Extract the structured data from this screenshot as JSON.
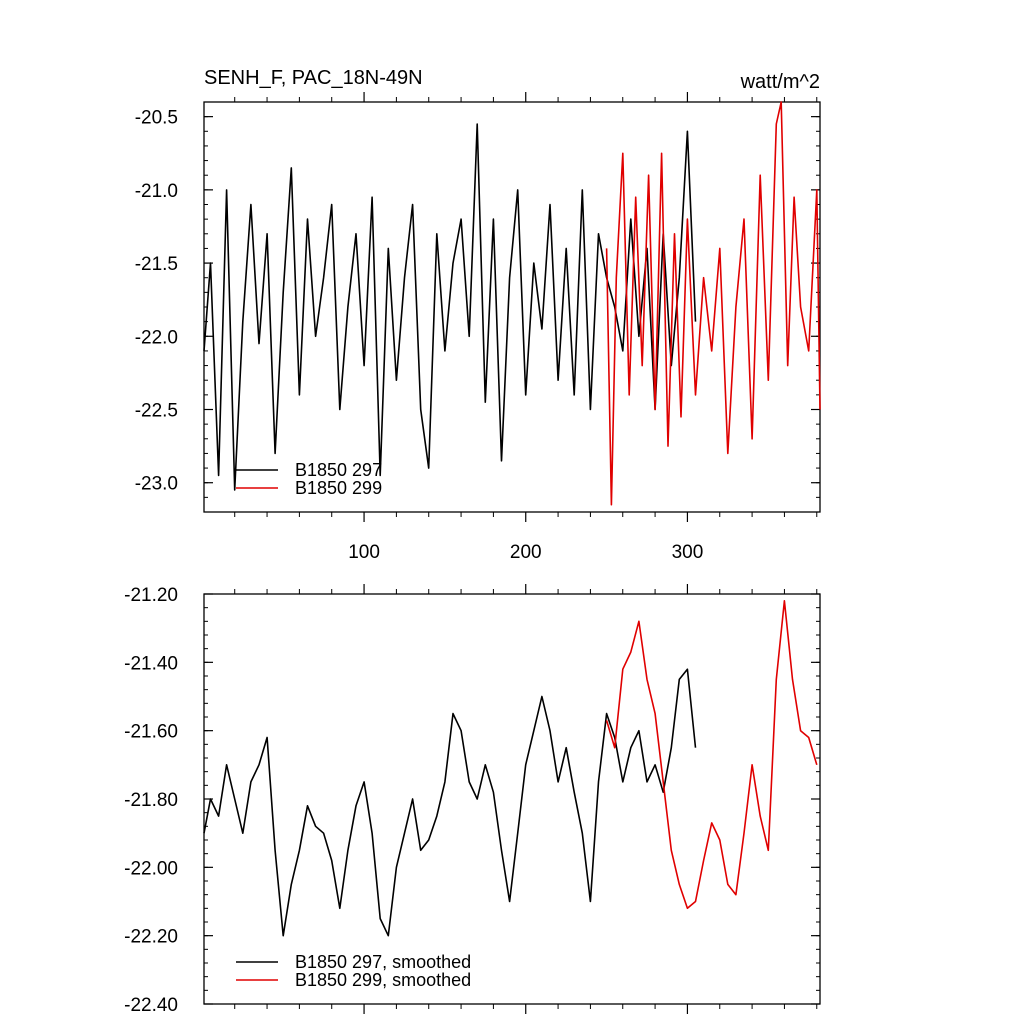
{
  "chart_data": [
    {
      "type": "line",
      "title": "SENH_F, PAC_18N-49N",
      "units": "watt/m^2",
      "xlim": [
        1,
        382
      ],
      "ylim": [
        -23.2,
        -20.4
      ],
      "xticks": [
        100,
        200,
        300
      ],
      "xtick_labels": [
        "100",
        "200",
        "300"
      ],
      "yticks": [
        -20.5,
        -21.0,
        -21.5,
        -22.0,
        -22.5,
        -23.0
      ],
      "ytick_labels": [
        "-20.5",
        "-21.0",
        "-21.5",
        "-22.0",
        "-22.5",
        "-23.0"
      ],
      "legend": "bottom-left",
      "series": [
        {
          "name": "B1850 297",
          "color": "#000000",
          "x": [
            1,
            5,
            10,
            15,
            20,
            25,
            30,
            35,
            40,
            45,
            50,
            55,
            60,
            65,
            70,
            75,
            80,
            85,
            90,
            95,
            100,
            105,
            110,
            115,
            120,
            125,
            130,
            135,
            140,
            145,
            150,
            155,
            160,
            165,
            170,
            175,
            180,
            185,
            190,
            195,
            200,
            205,
            210,
            215,
            220,
            225,
            230,
            235,
            240,
            245,
            250,
            255,
            260,
            265,
            270,
            275,
            280,
            285,
            290,
            295,
            300,
            305
          ],
          "values": [
            -22.1,
            -21.5,
            -22.95,
            -21.0,
            -23.05,
            -21.9,
            -21.1,
            -22.05,
            -21.3,
            -22.8,
            -21.7,
            -20.85,
            -22.4,
            -21.2,
            -22.0,
            -21.6,
            -21.1,
            -22.5,
            -21.8,
            -21.3,
            -22.2,
            -21.05,
            -22.95,
            -21.4,
            -22.3,
            -21.6,
            -21.1,
            -22.5,
            -22.9,
            -21.3,
            -22.1,
            -21.5,
            -21.2,
            -22.0,
            -20.55,
            -22.45,
            -21.2,
            -22.85,
            -21.6,
            -21.0,
            -22.4,
            -21.5,
            -21.95,
            -21.1,
            -22.3,
            -21.4,
            -22.4,
            -21.0,
            -22.5,
            -21.3,
            -21.6,
            -21.8,
            -22.1,
            -21.2,
            -22.0,
            -21.4,
            -22.5,
            -21.3,
            -22.2,
            -21.6,
            -20.6,
            -21.9
          ]
        },
        {
          "name": "B1850 299",
          "color": "#e00000",
          "x": [
            250,
            253,
            256,
            260,
            264,
            268,
            272,
            276,
            280,
            284,
            288,
            292,
            296,
            300,
            305,
            310,
            315,
            320,
            325,
            330,
            335,
            340,
            345,
            350,
            355,
            358,
            362,
            366,
            370,
            375,
            380,
            382
          ],
          "values": [
            -21.4,
            -23.15,
            -21.6,
            -20.75,
            -22.4,
            -21.05,
            -22.2,
            -20.9,
            -22.5,
            -20.75,
            -22.75,
            -21.3,
            -22.55,
            -21.2,
            -22.4,
            -21.6,
            -22.1,
            -21.4,
            -22.8,
            -21.8,
            -21.2,
            -22.7,
            -20.9,
            -22.3,
            -20.55,
            -20.4,
            -22.2,
            -21.05,
            -21.8,
            -22.1,
            -21.0,
            -22.5
          ]
        }
      ]
    },
    {
      "type": "line",
      "xlim": [
        1,
        382
      ],
      "ylim": [
        -22.4,
        -21.2
      ],
      "yticks": [
        -21.2,
        -21.4,
        -21.6,
        -21.8,
        -22.0,
        -22.2,
        -22.4
      ],
      "ytick_labels": [
        "-21.20",
        "-21.40",
        "-21.60",
        "-21.80",
        "-22.00",
        "-22.20",
        "-22.40"
      ],
      "xticks": [
        100,
        200,
        300
      ],
      "legend": "bottom-left",
      "series": [
        {
          "name": "B1850 297, smoothed",
          "color": "#000000",
          "x": [
            1,
            5,
            10,
            15,
            20,
            25,
            30,
            35,
            40,
            45,
            50,
            55,
            60,
            65,
            70,
            75,
            80,
            85,
            90,
            95,
            100,
            105,
            110,
            115,
            120,
            125,
            130,
            135,
            140,
            145,
            150,
            155,
            160,
            165,
            170,
            175,
            180,
            185,
            190,
            195,
            200,
            205,
            210,
            215,
            220,
            225,
            230,
            235,
            240,
            245,
            250,
            255,
            260,
            265,
            270,
            275,
            280,
            285,
            290,
            295,
            300,
            305
          ],
          "values": [
            -21.9,
            -21.8,
            -21.85,
            -21.7,
            -21.8,
            -21.9,
            -21.75,
            -21.7,
            -21.62,
            -21.95,
            -22.2,
            -22.05,
            -21.95,
            -21.82,
            -21.88,
            -21.9,
            -21.98,
            -22.12,
            -21.95,
            -21.82,
            -21.75,
            -21.9,
            -22.15,
            -22.2,
            -22.0,
            -21.9,
            -21.8,
            -21.95,
            -21.92,
            -21.85,
            -21.75,
            -21.55,
            -21.6,
            -21.75,
            -21.8,
            -21.7,
            -21.78,
            -21.95,
            -22.1,
            -21.9,
            -21.7,
            -21.6,
            -21.5,
            -21.6,
            -21.75,
            -21.65,
            -21.78,
            -21.9,
            -22.1,
            -21.75,
            -21.55,
            -21.62,
            -21.75,
            -21.65,
            -21.6,
            -21.75,
            -21.7,
            -21.78,
            -21.65,
            -21.45,
            -21.42,
            -21.65
          ]
        },
        {
          "name": "B1850 299, smoothed",
          "color": "#e00000",
          "x": [
            250,
            255,
            260,
            265,
            270,
            275,
            280,
            285,
            290,
            295,
            300,
            305,
            310,
            315,
            320,
            325,
            330,
            335,
            340,
            345,
            350,
            355,
            360,
            365,
            370,
            375,
            380
          ],
          "values": [
            -21.57,
            -21.65,
            -21.42,
            -21.37,
            -21.28,
            -21.45,
            -21.55,
            -21.75,
            -21.95,
            -22.05,
            -22.12,
            -22.1,
            -21.98,
            -21.87,
            -21.92,
            -22.05,
            -22.08,
            -21.9,
            -21.7,
            -21.85,
            -21.95,
            -21.45,
            -21.22,
            -21.45,
            -21.6,
            -21.62,
            -21.7
          ]
        }
      ]
    }
  ]
}
